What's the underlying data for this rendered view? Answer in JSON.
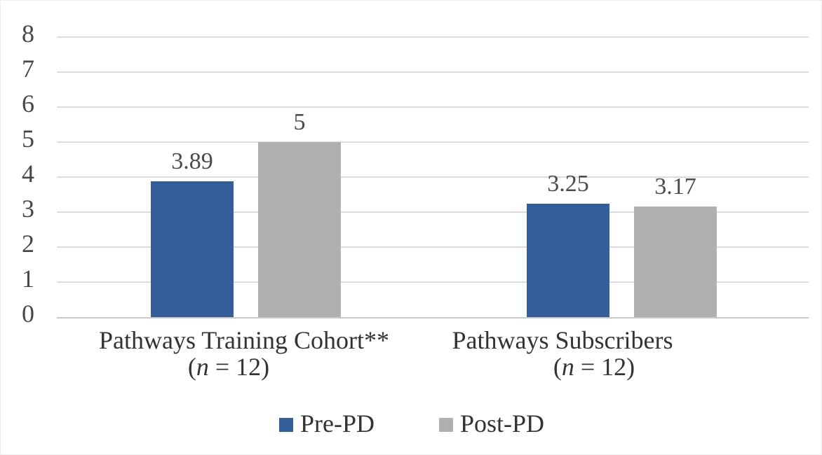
{
  "figure_title": "Pre-PD vs Post-PD mean scores bar chart",
  "colors": {
    "pre_pd_blue": "#345E99",
    "post_pd_gray": "#B0B0B0",
    "gridline": "#DCDCDC",
    "axis_line": "#C9C9C9",
    "tick_text": "#474747",
    "label_text": "#333333"
  },
  "chart_data": {
    "type": "bar",
    "title": "",
    "xlabel": "",
    "ylabel": "",
    "grid": "horizontal",
    "legend_position": "bottom",
    "y_axis": {
      "min": 0,
      "max": 8,
      "step": 1,
      "tick_labels": [
        "0",
        "1",
        "2",
        "3",
        "4",
        "5",
        "6",
        "7",
        "8"
      ]
    },
    "categories": [
      {
        "line1": "Pathways Training Cohort**",
        "line2_open": "(",
        "line2_var": "n",
        "line2_rest": " = 12)"
      },
      {
        "line1": "Pathways Subscribers",
        "line2_open": "(",
        "line2_var": "n",
        "line2_rest": " = 12)"
      }
    ],
    "series": [
      {
        "name": "Pre-PD",
        "color": "#345E99",
        "values": [
          3.89,
          3.25
        ],
        "data_labels": [
          "3.89",
          "3.25"
        ]
      },
      {
        "name": "Post-PD",
        "color": "#B0B0B0",
        "values": [
          5,
          3.17
        ],
        "data_labels": [
          "5",
          "3.17"
        ]
      }
    ]
  }
}
